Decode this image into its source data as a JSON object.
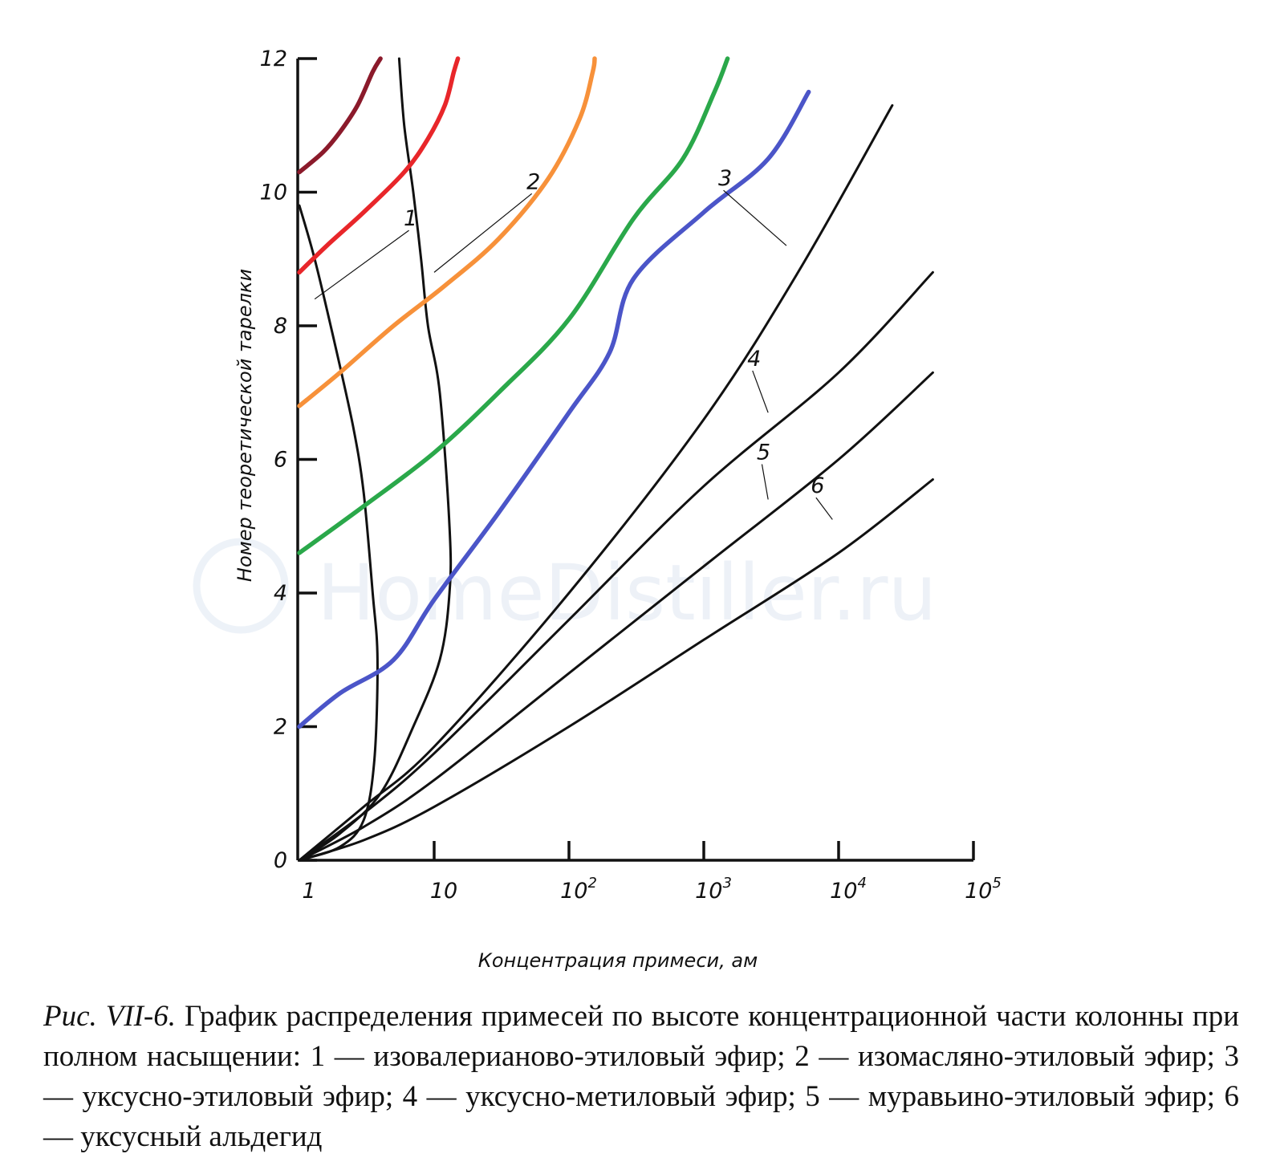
{
  "watermark": "HomeDistiller.ru",
  "caption": {
    "figure_label": "Рис. VII-6.",
    "text": "График распределения примесей по высоте концентрационной части колонны при полном насыщении: 1 — изовалерианово-этиловый эфир; 2 — изомасляно-этиловый эфир; 3 — уксусно-этиловый эфир; 4 — уксусно-метиловый эфир; 5 — муравьино-этиловый эфир; 6 — уксусный альдегид"
  },
  "colors": {
    "axis": "#111111",
    "black_curves": "#111111",
    "dark_red": "#8b1a2b",
    "red": "#e8262a",
    "orange": "#f7913a",
    "green": "#2aa84a",
    "blue": "#4b55c8"
  },
  "chart_data": {
    "type": "line",
    "xlabel": "Концентрация примеси, aм",
    "ylabel": "Номер теоретической тарелки",
    "x_scale": "log",
    "xlim": [
      1,
      100000
    ],
    "ylim": [
      0,
      12
    ],
    "x_ticks": [
      {
        "value": 1,
        "base": "1",
        "exp": ""
      },
      {
        "value": 10,
        "base": "10",
        "exp": ""
      },
      {
        "value": 100,
        "base": "10",
        "exp": "2"
      },
      {
        "value": 1000,
        "base": "10",
        "exp": "3"
      },
      {
        "value": 10000,
        "base": "10",
        "exp": "4"
      },
      {
        "value": 100000,
        "base": "10",
        "exp": "5"
      }
    ],
    "y_ticks": [
      0,
      2,
      4,
      6,
      8,
      10,
      12
    ],
    "grid": false,
    "series": [
      {
        "name": "1",
        "color": "#111111",
        "points": [
          [
            1,
            0
          ],
          [
            2,
            0.2
          ],
          [
            3,
            0.6
          ],
          [
            3.6,
            1.5
          ],
          [
            3.8,
            3
          ],
          [
            3.5,
            4
          ],
          [
            3,
            5.5
          ],
          [
            2.5,
            6.5
          ],
          [
            1.8,
            7.8
          ],
          [
            1.3,
            9
          ],
          [
            1,
            9.8
          ]
        ]
      },
      {
        "name": "2",
        "color": "#111111",
        "points": [
          [
            1,
            0
          ],
          [
            2,
            0.4
          ],
          [
            4,
            1
          ],
          [
            7,
            2
          ],
          [
            11,
            3
          ],
          [
            13,
            4
          ],
          [
            13,
            5
          ],
          [
            11,
            7
          ],
          [
            9,
            8
          ],
          [
            8,
            9
          ],
          [
            7,
            10
          ],
          [
            6,
            11
          ],
          [
            5.5,
            12
          ]
        ]
      },
      {
        "name": "3",
        "color": "#111111",
        "points": [
          [
            1,
            0
          ],
          [
            3,
            0.8
          ],
          [
            10,
            1.7
          ],
          [
            100,
            4
          ],
          [
            1000,
            6.6
          ],
          [
            5000,
            8.8
          ],
          [
            25000,
            11.3
          ]
        ]
      },
      {
        "name": "4",
        "color": "#111111",
        "points": [
          [
            1,
            0
          ],
          [
            3,
            0.7
          ],
          [
            10,
            1.6
          ],
          [
            100,
            3.6
          ],
          [
            1000,
            5.6
          ],
          [
            10000,
            7.3
          ],
          [
            50000,
            8.8
          ]
        ]
      },
      {
        "name": "5",
        "color": "#111111",
        "points": [
          [
            1,
            0
          ],
          [
            3,
            0.5
          ],
          [
            10,
            1.2
          ],
          [
            100,
            2.8
          ],
          [
            1000,
            4.4
          ],
          [
            10000,
            6
          ],
          [
            50000,
            7.3
          ]
        ]
      },
      {
        "name": "6",
        "color": "#111111",
        "points": [
          [
            1,
            0
          ],
          [
            3,
            0.3
          ],
          [
            10,
            0.8
          ],
          [
            100,
            2
          ],
          [
            1000,
            3.3
          ],
          [
            10000,
            4.6
          ],
          [
            50000,
            5.7
          ]
        ]
      },
      {
        "name": "",
        "color": "#8b1a2b",
        "points": [
          [
            1,
            10.3
          ],
          [
            1.5,
            10.6
          ],
          [
            2,
            10.9
          ],
          [
            2.7,
            11.3
          ],
          [
            3.5,
            11.8
          ],
          [
            4,
            12
          ]
        ]
      },
      {
        "name": "",
        "color": "#e8262a",
        "points": [
          [
            1,
            8.8
          ],
          [
            1.6,
            9.2
          ],
          [
            3,
            9.7
          ],
          [
            6,
            10.3
          ],
          [
            9,
            10.8
          ],
          [
            12,
            11.3
          ],
          [
            14,
            11.8
          ],
          [
            15,
            12
          ]
        ]
      },
      {
        "name": "",
        "color": "#f7913a",
        "points": [
          [
            1,
            6.8
          ],
          [
            2,
            7.3
          ],
          [
            5,
            8
          ],
          [
            12,
            8.6
          ],
          [
            30,
            9.3
          ],
          [
            70,
            10.2
          ],
          [
            120,
            11.1
          ],
          [
            150,
            11.8
          ],
          [
            155,
            12
          ]
        ]
      },
      {
        "name": "",
        "color": "#2aa84a",
        "points": [
          [
            1,
            4.6
          ],
          [
            3,
            5.3
          ],
          [
            10,
            6.1
          ],
          [
            30,
            7
          ],
          [
            100,
            8.1
          ],
          [
            300,
            9.6
          ],
          [
            700,
            10.5
          ],
          [
            1200,
            11.5
          ],
          [
            1500,
            12
          ]
        ]
      },
      {
        "name": "",
        "color": "#4b55c8",
        "points": [
          [
            1,
            2
          ],
          [
            2,
            2.5
          ],
          [
            5,
            3
          ],
          [
            10,
            3.9
          ],
          [
            30,
            5.2
          ],
          [
            100,
            6.7
          ],
          [
            200,
            7.6
          ],
          [
            300,
            8.7
          ],
          [
            1000,
            9.7
          ],
          [
            3000,
            10.5
          ],
          [
            6000,
            11.5
          ]
        ]
      }
    ],
    "annotations": [
      {
        "text": "1",
        "x": 6.5,
        "y": 9.5,
        "leader_to": [
          1.3,
          8.4
        ]
      },
      {
        "text": "2",
        "x": 53,
        "y": 10.05,
        "leader_to": [
          10,
          8.8
        ]
      },
      {
        "text": "3",
        "x": 1400,
        "y": 10.1,
        "leader_to": [
          4100,
          9.2
        ]
      },
      {
        "text": "4",
        "x": 2300,
        "y": 7.4,
        "leader_to": [
          3000,
          6.7
        ]
      },
      {
        "text": "5",
        "x": 2700,
        "y": 6.0,
        "leader_to": [
          3000,
          5.4
        ]
      },
      {
        "text": "6",
        "x": 6800,
        "y": 5.5,
        "leader_to": [
          9000,
          5.1
        ]
      }
    ]
  }
}
